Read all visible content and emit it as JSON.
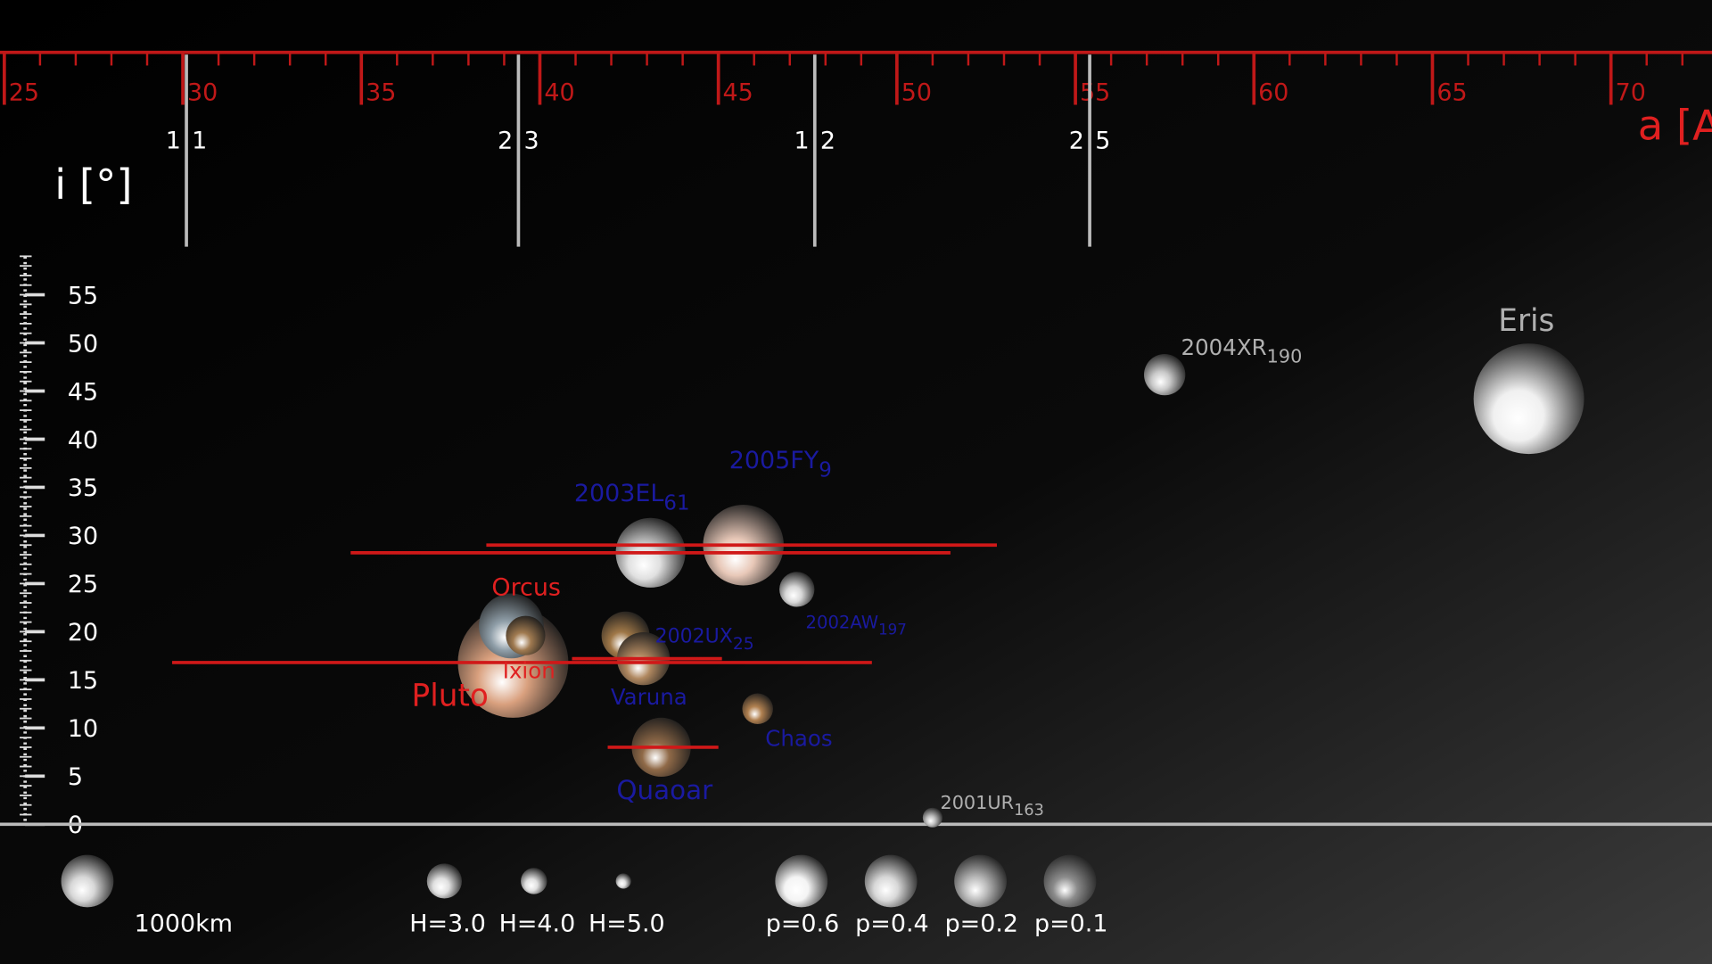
{
  "chart_data": {
    "type": "bubble",
    "xlabel": "a [AU]",
    "ylabel": "i [°]",
    "xlim": [
      24.94,
      72.9
    ],
    "ylim": [
      0,
      55
    ],
    "xticks": [
      25,
      30,
      35,
      40,
      45,
      50,
      55,
      60,
      65,
      70
    ],
    "yticks": [
      0,
      5,
      10,
      15,
      20,
      25,
      30,
      35,
      40,
      45,
      50,
      55
    ],
    "xminor_ticks": [
      25,
      26,
      27,
      28,
      29,
      30,
      31,
      32,
      33,
      34,
      35,
      36,
      37,
      38,
      39,
      40,
      41,
      42,
      43,
      44,
      45,
      46,
      47,
      48,
      49,
      50,
      51,
      52,
      53,
      54,
      55,
      56,
      57,
      58,
      59,
      60,
      61,
      62,
      63,
      64,
      65,
      66,
      67,
      68,
      69,
      70,
      71,
      72
    ],
    "yminor_ticks": [
      0,
      1,
      2,
      3,
      4,
      5,
      6,
      7,
      8,
      9,
      10,
      11,
      12,
      13,
      14,
      15,
      16,
      17,
      18,
      19,
      20,
      21,
      22,
      23,
      24,
      25,
      26,
      27,
      28,
      29,
      30,
      31,
      32,
      33,
      34,
      35,
      36,
      37,
      38,
      39,
      40,
      41,
      42,
      43,
      44,
      45,
      46,
      47,
      48,
      49,
      50,
      51,
      52,
      53,
      54,
      55,
      56,
      57,
      58,
      59
    ],
    "axis_color": "#c01818",
    "resonances": [
      {
        "a": 30.1,
        "inner": "1",
        "outer": "1"
      },
      {
        "a": 39.4,
        "inner": "2",
        "outer": "3"
      },
      {
        "a": 47.7,
        "inner": "1",
        "outer": "2"
      },
      {
        "a": 55.4,
        "inner": "2",
        "outer": "5"
      }
    ],
    "objects": [
      {
        "name": "Pluto",
        "a": 39.25,
        "i": 16.8,
        "size": 2300,
        "color": "#d9a07e",
        "label_color": "#e02020",
        "q": 29.7,
        "Q": 49.3
      },
      {
        "name": "Orcus",
        "a": 39.2,
        "i": 20.6,
        "size": 1350,
        "color": "#8f9ea8",
        "label_color": "#e02020"
      },
      {
        "name": "Ixion",
        "a": 39.6,
        "i": 19.6,
        "size": 820,
        "color": "#a07a50",
        "label_color": "#e02020"
      },
      {
        "name": "2003EL",
        "sub": "61",
        "a": 43.1,
        "i": 28.2,
        "size": 1450,
        "color": "#e0e0e0",
        "label_color": "#1a1aa0",
        "q": 34.7,
        "Q": 51.5
      },
      {
        "name": "2005FY",
        "sub": "9",
        "a": 45.7,
        "i": 29.0,
        "size": 1680,
        "color": "#e8c8b8",
        "label_color": "#1a1aa0",
        "q": 38.5,
        "Q": 52.8
      },
      {
        "name": "2002AW",
        "sub": "197",
        "a": 47.2,
        "i": 24.4,
        "size": 730,
        "color": "#d8d8d8",
        "label_color": "#1a1aa0"
      },
      {
        "name": "2002UX",
        "sub": "25",
        "a": 42.4,
        "i": 19.6,
        "size": 1000,
        "color": "#a07848",
        "label_color": "#1a1aa0"
      },
      {
        "name": "Varuna",
        "a": 42.9,
        "i": 17.2,
        "size": 1100,
        "color": "#b08860",
        "label_color": "#1a1aa0",
        "q": 40.9,
        "Q": 45.1
      },
      {
        "name": "Chaos",
        "a": 46.1,
        "i": 12.0,
        "size": 640,
        "color": "#b08050",
        "label_color": "#1a1aa0"
      },
      {
        "name": "Quaoar",
        "a": 43.4,
        "i": 8.0,
        "size": 1230,
        "color": "#906a48",
        "label_color": "#1a1aa0",
        "q": 41.9,
        "Q": 45.0
      },
      {
        "name": "2004XR",
        "sub": "190",
        "a": 57.5,
        "i": 46.7,
        "size": 860,
        "color": "#c8c8c8",
        "label_color": "#b0b0b0"
      },
      {
        "name": "Eris",
        "a": 67.7,
        "i": 44.2,
        "size": 2300,
        "color": "#f0f0f0",
        "label_color": "#b0b0b0"
      },
      {
        "name": "2001UR",
        "sub": "163",
        "a": 51.0,
        "i": 0.7,
        "size": 410,
        "color": "#c0c0c0",
        "label_color": "#b0b0b0"
      }
    ],
    "legend": {
      "scale_label": "1000km",
      "magnitudes": [
        "H=3.0",
        "H=4.0",
        "H=5.0"
      ],
      "albedos": [
        "p=0.6",
        "p=0.4",
        "p=0.2",
        "p=0.1"
      ]
    }
  }
}
